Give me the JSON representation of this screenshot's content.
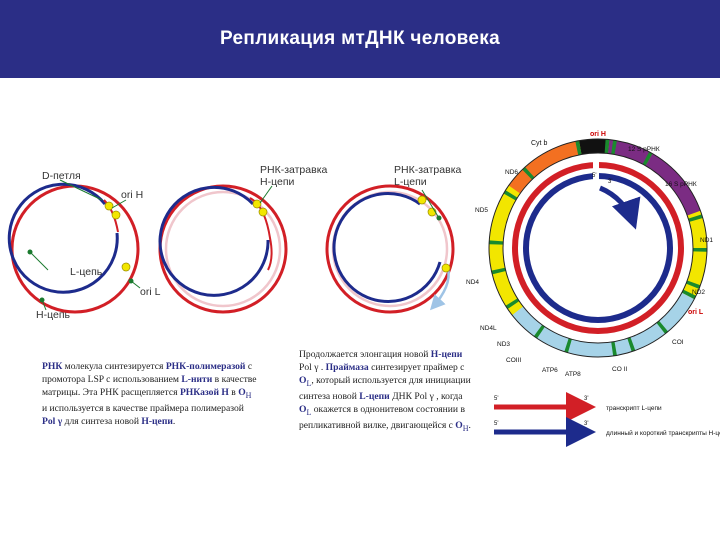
{
  "title": "Репликация мтДНК человека",
  "colors": {
    "banner": "#2b2e86",
    "heavy_strand": "#d21f26",
    "light_strand": "#1d2b8c",
    "primer": "#f2e600",
    "new_strand": "#9fc4e6",
    "gene_yellow": "#f2e600",
    "gene_orange": "#f37021",
    "gene_purple": "#7b2c83",
    "gene_lightblue": "#a6d3e8"
  },
  "left_diagram": {
    "d_loop": "D-петля",
    "ori_h": "ori H",
    "l_chain": "L-цепь",
    "ori_l": "ori L",
    "h_chain": "H-цепь",
    "primer_h": "РНК-затравка\nH-цепи",
    "primer_l": "РНК-затравка\nL-цепи"
  },
  "text1": {
    "p1": "РНК",
    "p2": " молекула синтезируется ",
    "p3": "РНК-полимеразой",
    "p4": " с промотора LSP с использованием ",
    "p5": "L-нити",
    "p6": " в качестве матрицы. Эта РНК расщепляется ",
    "p7": "РНКазой Н",
    "p8": " в ",
    "p9": "O",
    "p10": "H",
    "p11": " и используется в качестве праймера полимеразой ",
    "p12": "Pol γ",
    "p13": " для синтеза новой ",
    "p14": "Н-цепи",
    "p15": "."
  },
  "text2": {
    "p1": "Продолжается элонгация новой ",
    "p2": "Н-цепи",
    "p3": " Pol γ . ",
    "p4": "Праймаза",
    "p5": " синтезирует праймер с ",
    "p6": "O",
    "p7": "L",
    "p8": ", который используется для инициации синтеза новой ",
    "p9": "L-цепи",
    "p10": " ДНК Pol γ , когда ",
    "p11": "O",
    "p12": "L",
    "p13": " окажется в однонитевом состоянии в репликативной вилке, двигающейся с ",
    "p14": "O",
    "p15": "H",
    "p16": "."
  },
  "map_labels": {
    "cyt_b": "Cyt b",
    "ori_h": "ori H",
    "rrna12": "12 S рРНК",
    "rrna16": "16 S рРНК",
    "nd6": "ND6",
    "nd5": "ND5",
    "nd1": "ND1",
    "nd2": "ND2",
    "ori_l": "ori L",
    "nd4": "ND4",
    "nd4l": "ND4L",
    "nd3": "ND3",
    "co3": "COIII",
    "atp6": "ATP6",
    "atp8": "ATP8",
    "co2": "CO II",
    "co1": "COI",
    "lsp_small": "LSP",
    "hsp_small": "HSP"
  },
  "legend": {
    "red_label": "транскрипт L-цепи",
    "blue_label": "длинный и короткий транскрипты H-цепи",
    "end5": "5'",
    "end3": "3'"
  }
}
